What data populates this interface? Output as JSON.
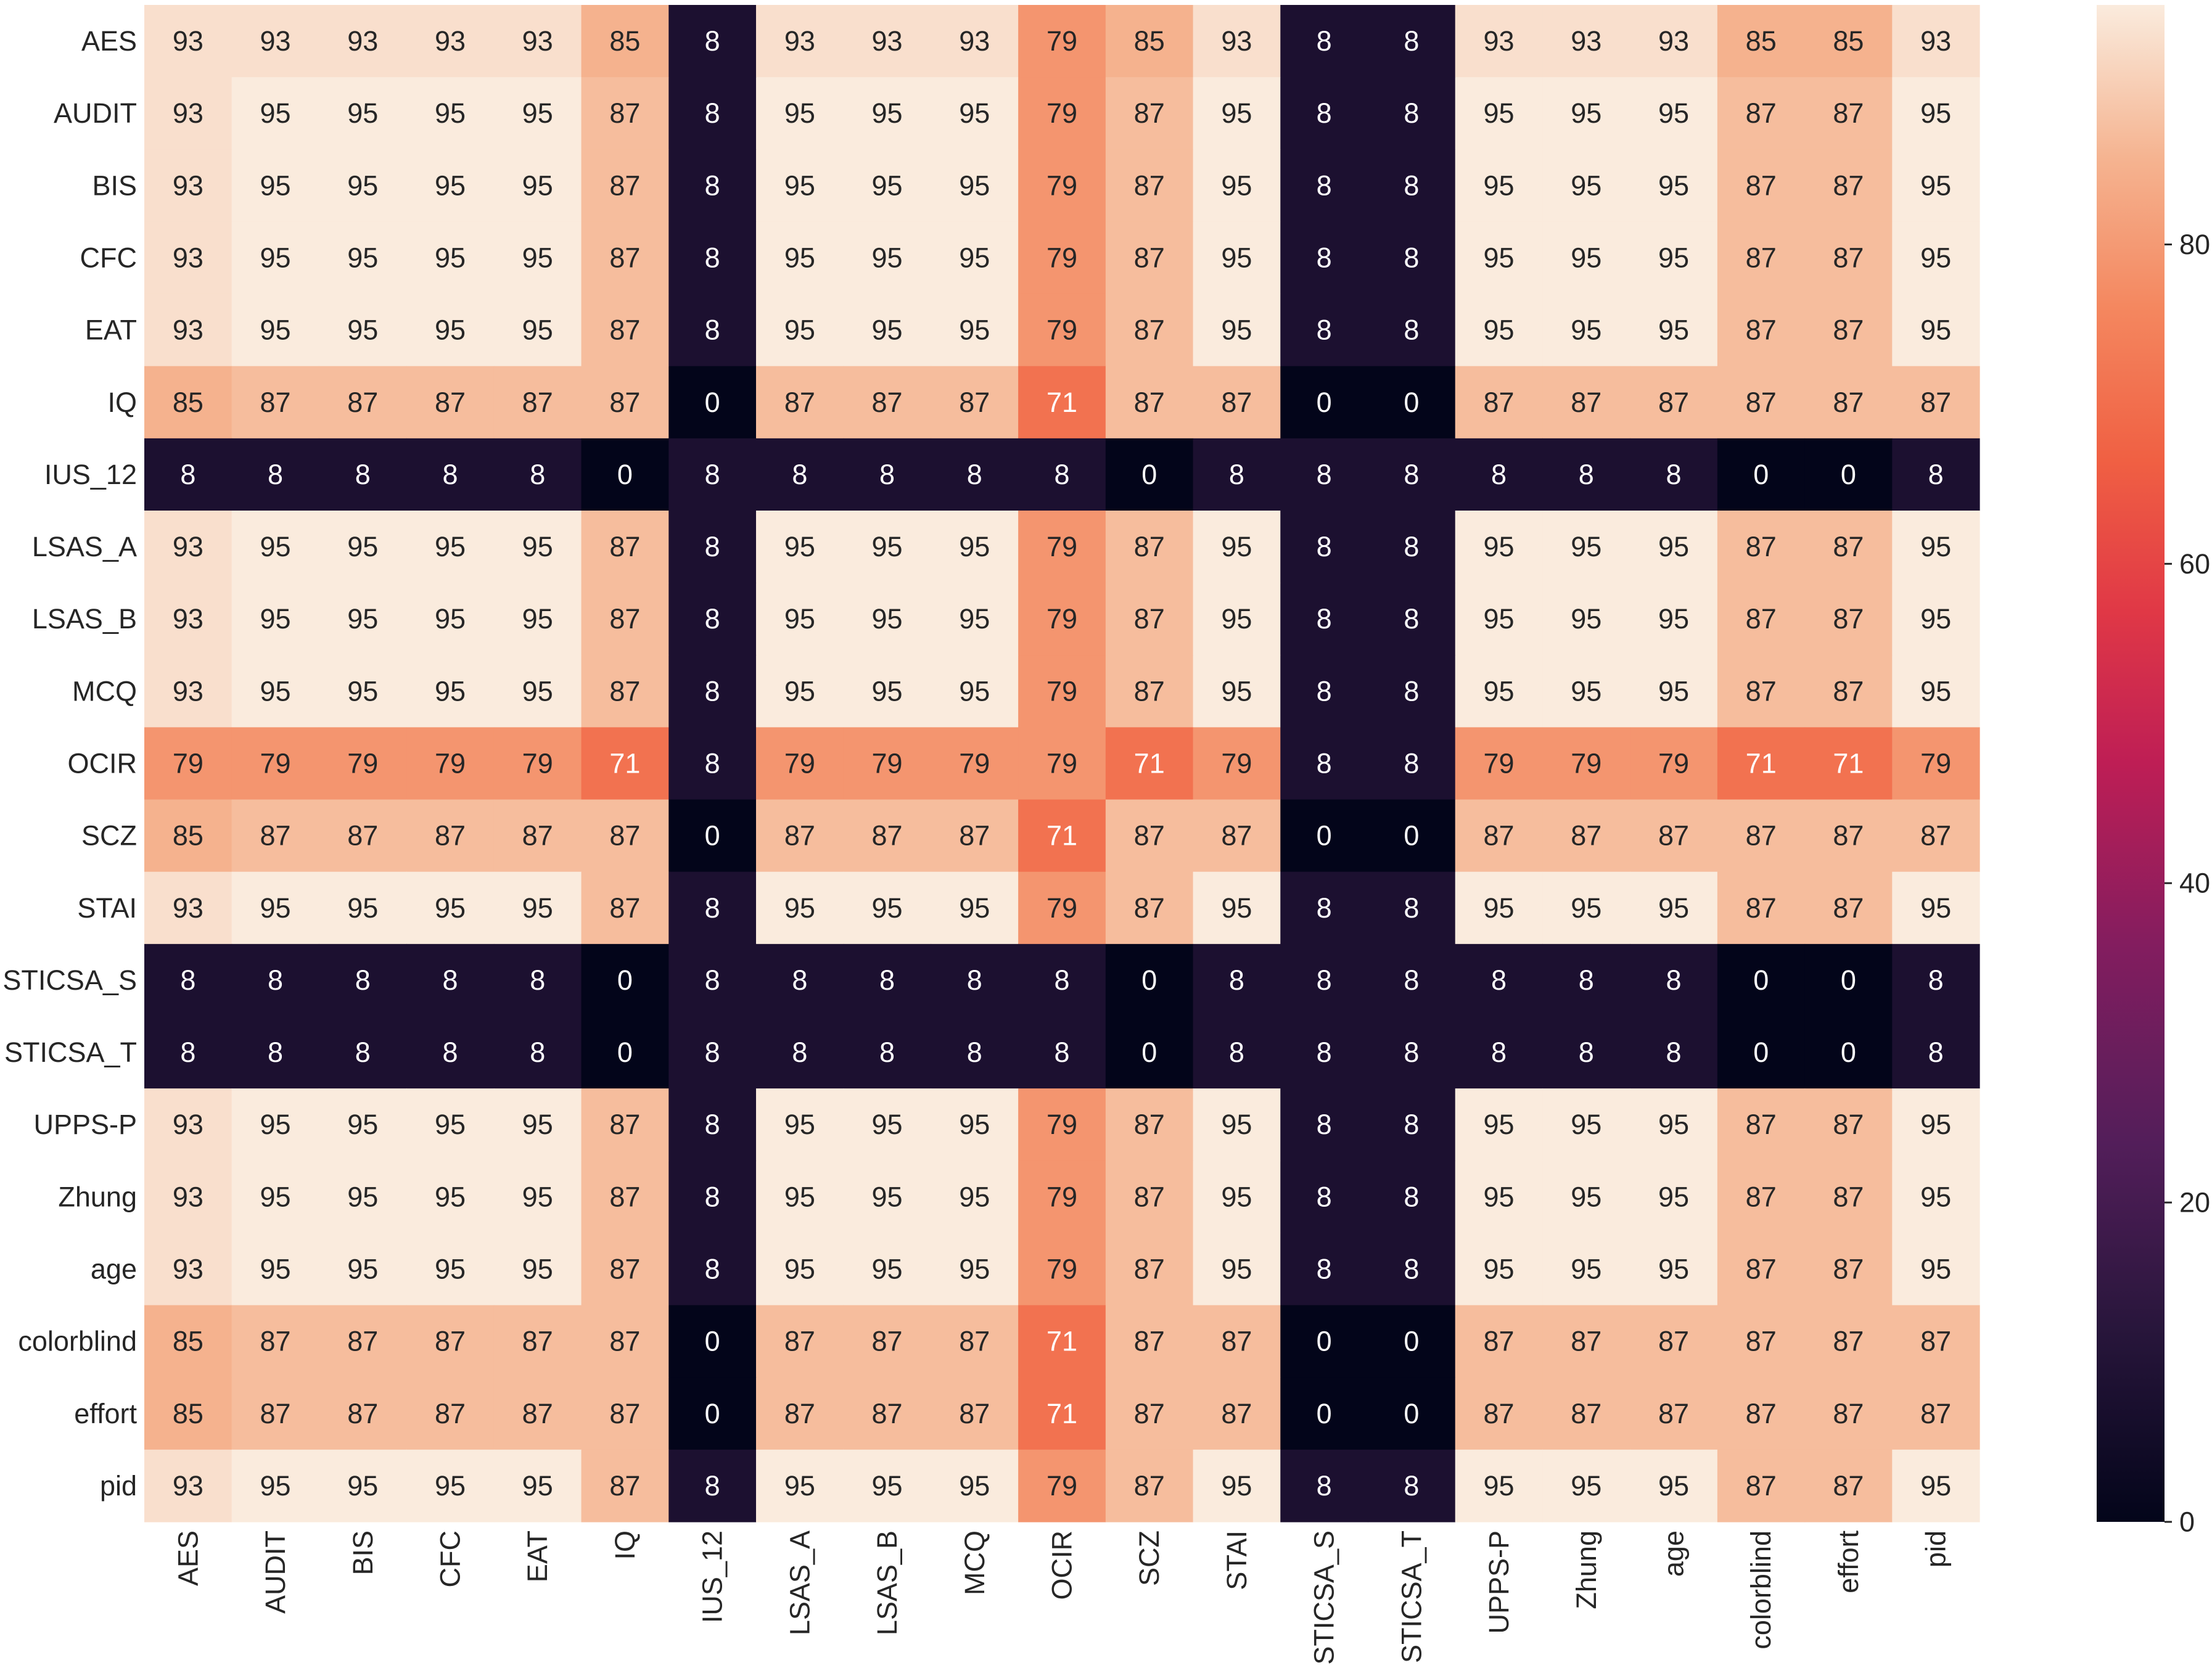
{
  "chart_data": {
    "type": "heatmap",
    "title": "",
    "xlabel": "",
    "ylabel": "",
    "colormap": "rocket",
    "value_range": [
      0,
      95
    ],
    "row_labels": [
      "AES",
      "AUDIT",
      "BIS",
      "CFC",
      "EAT",
      "IQ",
      "IUS_12",
      "LSAS_A",
      "LSAS_B",
      "MCQ",
      "OCIR",
      "SCZ",
      "STAI",
      "STICSA_S",
      "STICSA_T",
      "UPPS-P",
      "Zhung",
      "age",
      "colorblind",
      "effort",
      "pid"
    ],
    "col_labels": [
      "AES",
      "AUDIT",
      "BIS",
      "CFC",
      "EAT",
      "IQ",
      "IUS_12",
      "LSAS_A",
      "LSAS_B",
      "MCQ",
      "OCIR",
      "SCZ",
      "STAI",
      "STICSA_S",
      "STICSA_T",
      "UPPS-P",
      "Zhung",
      "age",
      "colorblind",
      "effort",
      "pid"
    ],
    "values": [
      [
        "93",
        "93",
        "93",
        "93",
        "93",
        "85",
        "8",
        "93",
        "93",
        "93",
        "79",
        "85",
        "93",
        "8",
        "8",
        "93",
        "93",
        "93",
        "85",
        "85",
        "93"
      ],
      [
        "93",
        "95",
        "95",
        "95",
        "95",
        "87",
        "8",
        "95",
        "95",
        "95",
        "79",
        "87",
        "95",
        "8",
        "8",
        "95",
        "95",
        "95",
        "87",
        "87",
        "95"
      ],
      [
        "93",
        "95",
        "95",
        "95",
        "95",
        "87",
        "8",
        "95",
        "95",
        "95",
        "79",
        "87",
        "95",
        "8",
        "8",
        "95",
        "95",
        "95",
        "87",
        "87",
        "95"
      ],
      [
        "93",
        "95",
        "95",
        "95",
        "95",
        "87",
        "8",
        "95",
        "95",
        "95",
        "79",
        "87",
        "95",
        "8",
        "8",
        "95",
        "95",
        "95",
        "87",
        "87",
        "95"
      ],
      [
        "93",
        "95",
        "95",
        "95",
        "95",
        "87",
        "8",
        "95",
        "95",
        "95",
        "79",
        "87",
        "95",
        "8",
        "8",
        "95",
        "95",
        "95",
        "87",
        "87",
        "95"
      ],
      [
        "85",
        "87",
        "87",
        "87",
        "87",
        "87",
        "0",
        "87",
        "87",
        "87",
        "71",
        "87",
        "87",
        "0",
        "0",
        "87",
        "87",
        "87",
        "87",
        "87",
        "87"
      ],
      [
        "8",
        "8",
        "8",
        "8",
        "8",
        "0",
        "8",
        "8",
        "8",
        "8",
        "8",
        "0",
        "8",
        "8",
        "8",
        "8",
        "8",
        "8",
        "0",
        "0",
        "8"
      ],
      [
        "93",
        "95",
        "95",
        "95",
        "95",
        "87",
        "8",
        "95",
        "95",
        "95",
        "79",
        "87",
        "95",
        "8",
        "8",
        "95",
        "95",
        "95",
        "87",
        "87",
        "95"
      ],
      [
        "93",
        "95",
        "95",
        "95",
        "95",
        "87",
        "8",
        "95",
        "95",
        "95",
        "79",
        "87",
        "95",
        "8",
        "8",
        "95",
        "95",
        "95",
        "87",
        "87",
        "95"
      ],
      [
        "93",
        "95",
        "95",
        "95",
        "95",
        "87",
        "8",
        "95",
        "95",
        "95",
        "79",
        "87",
        "95",
        "8",
        "8",
        "95",
        "95",
        "95",
        "87",
        "87",
        "95"
      ],
      [
        "79",
        "79",
        "79",
        "79",
        "79",
        "71",
        "8",
        "79",
        "79",
        "79",
        "79",
        "71",
        "79",
        "8",
        "8",
        "79",
        "79",
        "79",
        "71",
        "71",
        "79"
      ],
      [
        "85",
        "87",
        "87",
        "87",
        "87",
        "87",
        "0",
        "87",
        "87",
        "87",
        "71",
        "87",
        "87",
        "0",
        "0",
        "87",
        "87",
        "87",
        "87",
        "87",
        "87"
      ],
      [
        "93",
        "95",
        "95",
        "95",
        "95",
        "87",
        "8",
        "95",
        "95",
        "95",
        "79",
        "87",
        "95",
        "8",
        "8",
        "95",
        "95",
        "95",
        "87",
        "87",
        "95"
      ],
      [
        "8",
        "8",
        "8",
        "8",
        "8",
        "0",
        "8",
        "8",
        "8",
        "8",
        "8",
        "0",
        "8",
        "8",
        "8",
        "8",
        "8",
        "8",
        "0",
        "0",
        "8"
      ],
      [
        "8",
        "8",
        "8",
        "8",
        "8",
        "0",
        "8",
        "8",
        "8",
        "8",
        "8",
        "0",
        "8",
        "8",
        "8",
        "8",
        "8",
        "8",
        "0",
        "0",
        "8"
      ],
      [
        "93",
        "95",
        "95",
        "95",
        "95",
        "87",
        "8",
        "95",
        "95",
        "95",
        "79",
        "87",
        "95",
        "8",
        "8",
        "95",
        "95",
        "95",
        "87",
        "87",
        "95"
      ],
      [
        "93",
        "95",
        "95",
        "95",
        "95",
        "87",
        "8",
        "95",
        "95",
        "95",
        "79",
        "87",
        "95",
        "8",
        "8",
        "95",
        "95",
        "95",
        "87",
        "87",
        "95"
      ],
      [
        "93",
        "95",
        "95",
        "95",
        "95",
        "87",
        "8",
        "95",
        "95",
        "95",
        "79",
        "87",
        "95",
        "8",
        "8",
        "95",
        "95",
        "95",
        "87",
        "87",
        "95"
      ],
      [
        "85",
        "87",
        "87",
        "87",
        "87",
        "87",
        "0",
        "87",
        "87",
        "87",
        "71",
        "87",
        "87",
        "0",
        "0",
        "87",
        "87",
        "87",
        "87",
        "87",
        "87"
      ],
      [
        "85",
        "87",
        "87",
        "87",
        "87",
        "87",
        "0",
        "87",
        "87",
        "87",
        "71",
        "87",
        "87",
        "0",
        "0",
        "87",
        "87",
        "87",
        "87",
        "87",
        "87"
      ],
      [
        "93",
        "95",
        "95",
        "95",
        "95",
        "87",
        "8",
        "95",
        "95",
        "95",
        "79",
        "87",
        "95",
        "8",
        "8",
        "95",
        "95",
        "95",
        "87",
        "87",
        "95"
      ]
    ],
    "colorbar": {
      "ticks": [
        "0",
        "20",
        "40",
        "60",
        "80"
      ]
    },
    "grid": false,
    "legend": "colorbar-right"
  }
}
